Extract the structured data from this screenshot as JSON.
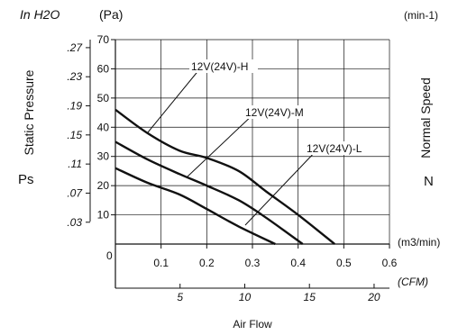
{
  "chart_data": {
    "type": "line",
    "units_top_left": "In H2O",
    "units_pa": "(Pa)",
    "units_speed": "(min-1)",
    "left_axis_title": "Static Pressure",
    "left_axis_symbol": "Ps",
    "right_axis_title": "Normal Speed",
    "right_axis_symbol": "N",
    "x_unit": "(m3/min)",
    "cfm_unit": "(CFM)",
    "xlabel": "Air Flow",
    "origin_label": "0",
    "xlim": [
      0,
      0.6
    ],
    "ylim": [
      0,
      70
    ],
    "x_ticks": [
      "0.1",
      "0.2",
      "0.3",
      "0.4",
      "0.5",
      "0.6"
    ],
    "y_ticks": [
      "10",
      "20",
      "30",
      "40",
      "50",
      "60",
      "70"
    ],
    "inh2o_ticks": [
      ".03",
      ".07",
      ".11",
      ".15",
      ".19",
      ".23",
      ".27"
    ],
    "cfm_ticks": [
      "5",
      "10",
      "15",
      "20"
    ],
    "series": [
      {
        "name": "12V(24V)-H",
        "points": [
          [
            0.0,
            46
          ],
          [
            0.07,
            38
          ],
          [
            0.14,
            32
          ],
          [
            0.2,
            29.5
          ],
          [
            0.27,
            25
          ],
          [
            0.33,
            18
          ],
          [
            0.4,
            10
          ],
          [
            0.48,
            0
          ]
        ]
      },
      {
        "name": "12V(24V)-M",
        "points": [
          [
            0.0,
            35
          ],
          [
            0.07,
            29
          ],
          [
            0.14,
            24
          ],
          [
            0.2,
            20
          ],
          [
            0.27,
            15
          ],
          [
            0.33,
            9
          ],
          [
            0.41,
            0
          ]
        ]
      },
      {
        "name": "12V(24V)-L",
        "points": [
          [
            0.0,
            26
          ],
          [
            0.07,
            21
          ],
          [
            0.14,
            17
          ],
          [
            0.2,
            12
          ],
          [
            0.27,
            6
          ],
          [
            0.35,
            0
          ]
        ]
      }
    ]
  }
}
